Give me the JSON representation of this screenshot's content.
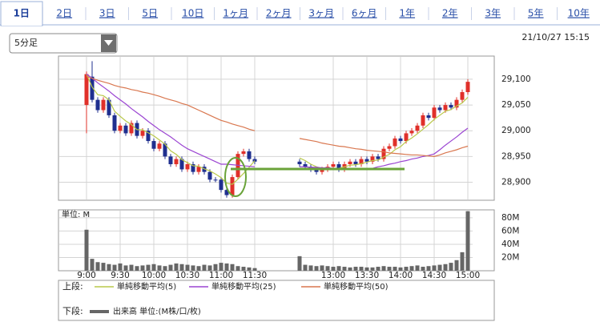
{
  "tabs": [
    "1日",
    "2日",
    "3日",
    "5日",
    "10日",
    "1ヶ月",
    "2ヶ月",
    "3ヶ月",
    "6ヶ月",
    "1年",
    "2年",
    "3年",
    "5年",
    "10年"
  ],
  "interval_select": "5分足",
  "timestamp": "21/10/27 15:15",
  "chart_data": [
    {
      "type": "candlestick",
      "legend_label": "上段:",
      "up_color": "#e0302a",
      "down_color": "#1f2f8f",
      "ylim": [
        28865,
        29145
      ],
      "yticks": [
        {
          "value": 28900,
          "label": "28,900"
        },
        {
          "value": 28950,
          "label": "28,950"
        },
        {
          "value": 29000,
          "label": "29,000"
        },
        {
          "value": 29050,
          "label": "29,050"
        },
        {
          "value": 29100,
          "label": "29,100"
        }
      ],
      "grid": true,
      "open": [
        29050,
        29105,
        29060,
        29040,
        29060,
        29030,
        29000,
        29010,
        28995,
        29015,
        28990,
        29000,
        28980,
        28965,
        28975,
        28950,
        28935,
        28945,
        28925,
        28935,
        28920,
        28930,
        28920,
        28905,
        28905,
        28885,
        28875,
        28910,
        28955,
        28960,
        28945,
        null,
        null,
        null,
        null,
        null,
        null,
        null,
        28940,
        28935,
        28930,
        28925,
        28920,
        28925,
        28930,
        28935,
        28925,
        28935,
        28940,
        28935,
        28945,
        28940,
        28950,
        28945,
        28965,
        28970,
        28985,
        28980,
        28995,
        29000,
        29010,
        29030,
        29025,
        29045,
        29040,
        29050,
        29045,
        29060,
        29075
      ],
      "high": [
        29115,
        29135,
        29065,
        29065,
        29065,
        29035,
        29015,
        29015,
        29020,
        29020,
        29005,
        29005,
        28985,
        28980,
        28980,
        28955,
        28950,
        28950,
        28940,
        28940,
        28935,
        28935,
        28925,
        28910,
        28910,
        28890,
        28915,
        28960,
        28965,
        28965,
        28950,
        null,
        null,
        null,
        null,
        null,
        null,
        null,
        28945,
        28940,
        28935,
        28930,
        28930,
        28935,
        28940,
        28940,
        28940,
        28945,
        28945,
        28950,
        28950,
        28955,
        28955,
        28970,
        28975,
        28990,
        28990,
        29000,
        29005,
        29015,
        29035,
        29035,
        29050,
        29050,
        29055,
        29055,
        29065,
        29080,
        29100
      ],
      "low": [
        28995,
        29055,
        29035,
        29035,
        29025,
        28995,
        28995,
        28990,
        28990,
        28985,
        28985,
        28975,
        28960,
        28960,
        28945,
        28930,
        28930,
        28920,
        28920,
        28915,
        28915,
        28915,
        28900,
        28900,
        28880,
        28870,
        28870,
        28905,
        28950,
        28940,
        28935,
        null,
        null,
        null,
        null,
        null,
        null,
        null,
        28930,
        28925,
        28920,
        28915,
        28915,
        28920,
        28925,
        28920,
        28920,
        28930,
        28930,
        28930,
        28935,
        28935,
        28940,
        28940,
        28960,
        28965,
        28975,
        28975,
        28990,
        28995,
        29005,
        29020,
        29020,
        29035,
        29035,
        29040,
        29040,
        29055,
        29070
      ],
      "close": [
        29110,
        29060,
        29040,
        29060,
        29030,
        29000,
        29010,
        28995,
        29015,
        28990,
        29000,
        28980,
        28965,
        28975,
        28950,
        28935,
        28945,
        28925,
        28935,
        28920,
        28930,
        28920,
        28905,
        28905,
        28885,
        28875,
        28910,
        28955,
        28960,
        28945,
        28940,
        null,
        null,
        null,
        null,
        null,
        null,
        null,
        28935,
        28930,
        28925,
        28920,
        28925,
        28930,
        28935,
        28925,
        28935,
        28940,
        28935,
        28945,
        28940,
        28950,
        28945,
        28965,
        28970,
        28985,
        28980,
        28995,
        29000,
        29010,
        29030,
        29025,
        29045,
        29040,
        29050,
        29045,
        29060,
        29075,
        29095
      ],
      "series": [
        {
          "name": "単純移動平均(5)",
          "color": "#b9c94a",
          "values": [
            29110,
            29085,
            29070,
            29068,
            29060,
            29038,
            29028,
            29019,
            29012,
            29002,
            29002,
            28996,
            28990,
            28982,
            28974,
            28961,
            28954,
            28944,
            28938,
            28932,
            28931,
            28926,
            28922,
            28916,
            28909,
            28898,
            28896,
            28906,
            28917,
            28929,
            28942,
            null,
            null,
            null,
            null,
            null,
            null,
            null,
            28947,
            28942,
            28935,
            28930,
            28927,
            28926,
            28927,
            28927,
            28930,
            28933,
            28934,
            28936,
            28939,
            28942,
            28943,
            28949,
            28954,
            28963,
            28969,
            28979,
            28986,
            28994,
            29003,
            29012,
            29022,
            29030,
            29038,
            29041,
            29048,
            29054,
            29065
          ]
        },
        {
          "name": "単純移動平均(25)",
          "color": "#9b45d2",
          "values": [
            29110,
            29102,
            29093,
            29085,
            29077,
            29068,
            29060,
            29052,
            29043,
            29035,
            29027,
            29018,
            29010,
            29002,
            28995,
            28988,
            28980,
            28972,
            28965,
            28960,
            28955,
            28950,
            28945,
            28940,
            28935,
            28935,
            28934,
            28933,
            28932,
            28931,
            28930,
            null,
            null,
            null,
            null,
            null,
            null,
            null,
            28930,
            28930,
            28929,
            28929,
            28928,
            28928,
            28927,
            28927,
            28926,
            28926,
            28925,
            28925,
            28925,
            28927,
            28930,
            28932,
            28935,
            28937,
            28940,
            28942,
            28945,
            28947,
            28950,
            28952,
            28955,
            28963,
            28972,
            28980,
            28988,
            28997,
            29005
          ]
        },
        {
          "name": "単純移動平均(50)",
          "color": "#d9774f",
          "values": [
            29105,
            29102,
            29098,
            29095,
            29092,
            29088,
            29085,
            29083,
            29080,
            29078,
            29075,
            29073,
            29070,
            29067,
            29063,
            29060,
            29057,
            29053,
            29050,
            29045,
            29040,
            29035,
            29030,
            29025,
            29020,
            29017,
            29013,
            29010,
            29007,
            29003,
            29000,
            null,
            null,
            null,
            null,
            null,
            null,
            null,
            28985,
            28983,
            28981,
            28979,
            28976,
            28974,
            28972,
            28970,
            28969,
            28967,
            28965,
            28964,
            28962,
            28961,
            28960,
            28959,
            28957,
            28956,
            28955,
            28954,
            28953,
            28953,
            28952,
            28951,
            28950,
            28953,
            28957,
            28960,
            28963,
            28967,
            28970
          ]
        }
      ]
    },
    {
      "type": "bar",
      "legend_label": "下段:",
      "y_label": "単位: M",
      "ylim": [
        0,
        92
      ],
      "yticks": [
        {
          "value": 20,
          "label": "20M"
        },
        {
          "value": 40,
          "label": "40M"
        },
        {
          "value": 60,
          "label": "60M"
        },
        {
          "value": 80,
          "label": "80M"
        }
      ],
      "grid": true,
      "categories": [
        "9:00",
        null,
        null,
        null,
        null,
        null,
        "9:30",
        null,
        null,
        null,
        null,
        null,
        "10:00",
        null,
        null,
        null,
        null,
        null,
        "10:30",
        null,
        null,
        null,
        null,
        null,
        "11:00",
        null,
        null,
        null,
        null,
        null,
        "11:30",
        null,
        null,
        null,
        null,
        null,
        null,
        null,
        null,
        null,
        null,
        null,
        null,
        null,
        "13:00",
        null,
        null,
        null,
        null,
        null,
        "13:30",
        null,
        null,
        null,
        null,
        null,
        "14:00",
        null,
        null,
        null,
        null,
        null,
        "14:30",
        null,
        null,
        null,
        null,
        null,
        "15:00"
      ],
      "series": [
        {
          "name": "出来高 単位:(M株/口/枚)",
          "color": "#666666",
          "values": [
            62,
            18,
            13,
            12,
            10,
            9,
            11,
            8,
            9,
            7,
            8,
            9,
            10,
            8,
            7,
            9,
            11,
            10,
            9,
            8,
            7,
            9,
            8,
            10,
            12,
            11,
            10,
            7,
            6,
            5,
            4,
            null,
            null,
            null,
            null,
            null,
            null,
            null,
            22,
            9,
            8,
            7,
            8,
            7,
            6,
            7,
            6,
            5,
            6,
            6,
            5,
            5,
            6,
            7,
            6,
            6,
            5,
            6,
            7,
            8,
            6,
            7,
            8,
            9,
            10,
            12,
            16,
            28,
            90
          ]
        }
      ]
    }
  ]
}
